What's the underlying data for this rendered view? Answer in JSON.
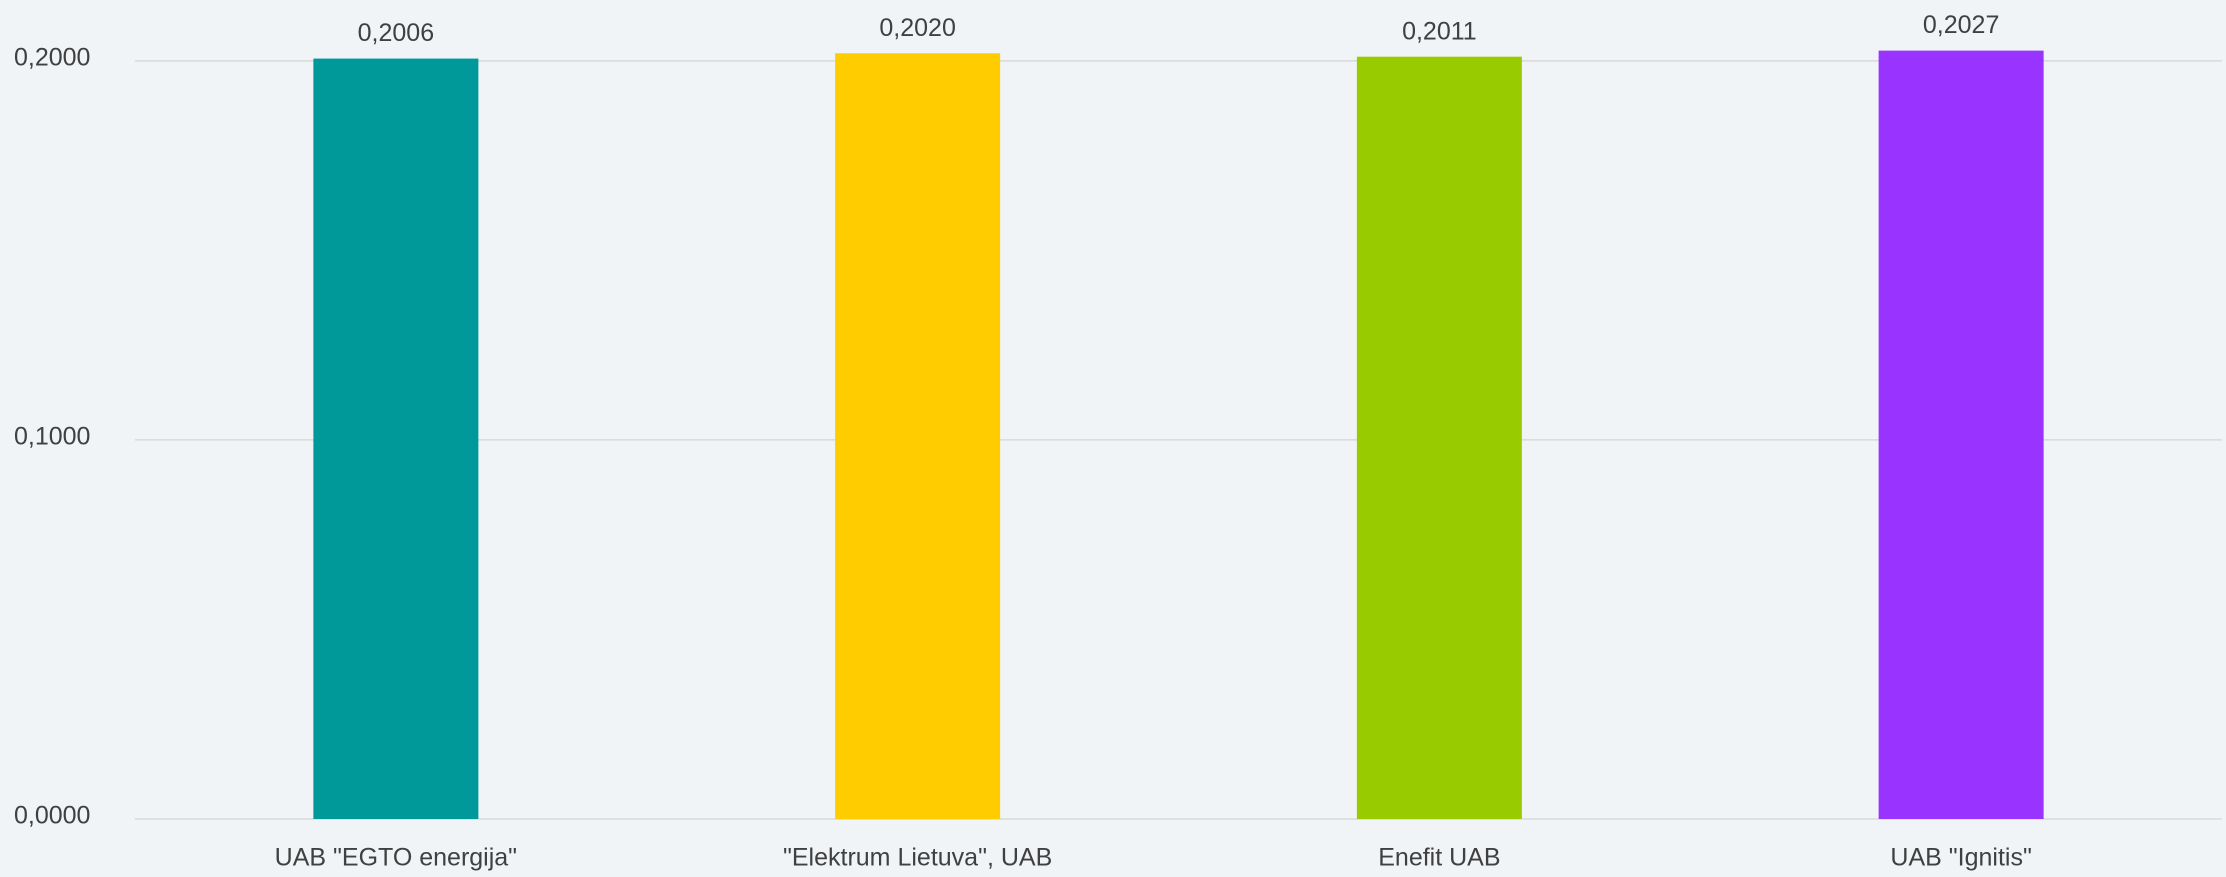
{
  "chart_data": {
    "type": "bar",
    "categories": [
      "UAB \"EGTO energija\"",
      "\"Elektrum Lietuva\", UAB",
      "Enefit UAB",
      "UAB \"Ignitis\""
    ],
    "values": [
      0.2006,
      0.202,
      0.2011,
      0.2027
    ],
    "value_labels": [
      "0,2006",
      "0,2020",
      "0,2011",
      "0,2027"
    ],
    "colors": [
      "#009999",
      "#ffcc00",
      "#99cc00",
      "#9933ff"
    ],
    "ylim": [
      0,
      0.215
    ],
    "yticks": [
      {
        "value": 0,
        "label": "0,0000"
      },
      {
        "value": 0.1,
        "label": "0,1000"
      },
      {
        "value": 0.2,
        "label": "0,2000"
      }
    ],
    "grid": true
  }
}
